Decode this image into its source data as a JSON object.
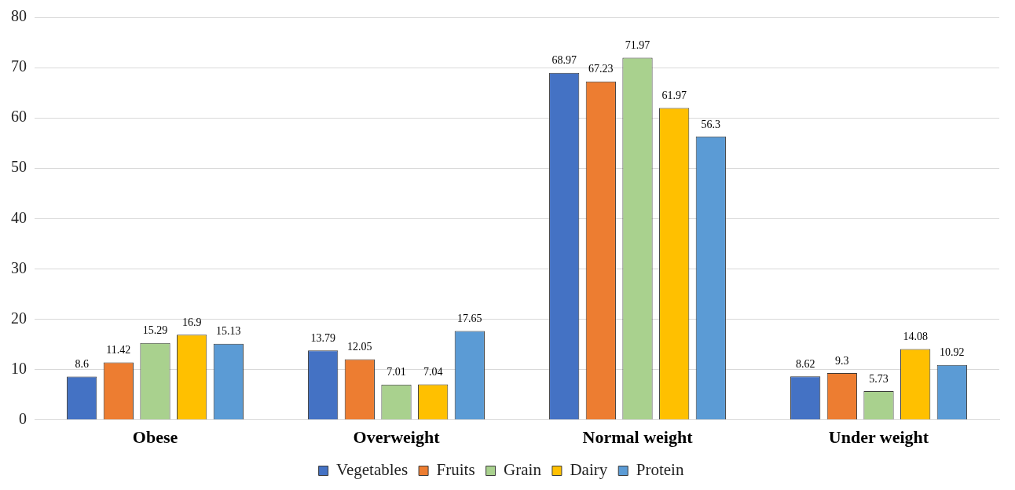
{
  "chart_data": {
    "type": "bar",
    "categories": [
      "Obese",
      "Overweight",
      "Normal weight",
      "Under weight"
    ],
    "series": [
      {
        "name": "Vegetables",
        "color": "#4472c4",
        "values": [
          8.6,
          13.79,
          68.97,
          8.62
        ]
      },
      {
        "name": "Fruits",
        "color": "#ed7d31",
        "values": [
          11.42,
          12.05,
          67.23,
          9.3
        ]
      },
      {
        "name": "Grain",
        "color": "#a9d18e",
        "values": [
          15.29,
          7.01,
          71.97,
          5.73
        ]
      },
      {
        "name": "Dairy",
        "color": "#ffc000",
        "values": [
          16.9,
          7.04,
          61.97,
          14.08
        ]
      },
      {
        "name": "Protein",
        "color": "#5b9bd5",
        "values": [
          15.13,
          17.65,
          56.3,
          10.92
        ]
      }
    ],
    "ylim": [
      0,
      80
    ],
    "yticks": [
      0,
      10,
      20,
      30,
      40,
      50,
      60,
      70,
      80
    ],
    "grid": "y",
    "legend": "bottom",
    "data_labels": true
  }
}
